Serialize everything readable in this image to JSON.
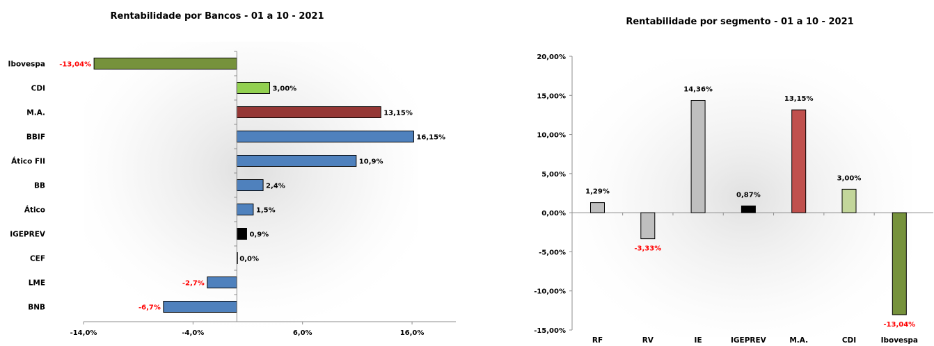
{
  "chart_data": [
    {
      "type": "bar",
      "orientation": "horizontal",
      "title": "Rentabilidade por Bancos - 01 a 10 - 2021",
      "categories": [
        "Ibovespa",
        "CDI",
        "M.A.",
        "BBIF",
        "Ático FII",
        "BB",
        "Ático",
        "IGEPREV",
        "CEF",
        "LME",
        "BNB"
      ],
      "values": [
        -13.04,
        3.0,
        13.15,
        16.15,
        10.9,
        2.4,
        1.5,
        0.9,
        0.0,
        -2.7,
        -6.7
      ],
      "data_labels": [
        "-13,04%",
        "3,00%",
        "13,15%",
        "16,15%",
        "10,9%",
        "2,4%",
        "1,5%",
        "0,9%",
        "0,0%",
        "-2,7%",
        "-6,7%"
      ],
      "colors": [
        "#76923c",
        "#92d050",
        "#953735",
        "#4f81bd",
        "#4f81bd",
        "#4f81bd",
        "#4f81bd",
        "#000000",
        "#4f81bd",
        "#4f81bd",
        "#4f81bd"
      ],
      "label_colors": [
        "#ff0000",
        "#000000",
        "#000000",
        "#000000",
        "#000000",
        "#000000",
        "#000000",
        "#000000",
        "#000000",
        "#ff0000",
        "#ff0000"
      ],
      "xlim": [
        -14,
        20
      ],
      "x_ticks": [
        -14,
        -4,
        6,
        16
      ],
      "x_tick_labels": [
        "-14,0%",
        "-4,0%",
        "6,0%",
        "16,0%"
      ],
      "xlabel": "",
      "ylabel": "",
      "grid": false,
      "legend": "none"
    },
    {
      "type": "bar",
      "orientation": "vertical",
      "title": "Rentabilidade por segmento - 01 a 10 - 2021",
      "categories": [
        "RF",
        "RV",
        "IE",
        "IGEPREV",
        "M.A.",
        "CDI",
        "Ibovespa"
      ],
      "values": [
        1.29,
        -3.33,
        14.36,
        0.87,
        13.15,
        3.0,
        -13.04
      ],
      "data_labels": [
        "1,29%",
        "-3,33%",
        "14,36%",
        "0,87%",
        "13,15%",
        "3,00%",
        "-13,04%"
      ],
      "colors": [
        "#bfbfbf",
        "#bfbfbf",
        "#bfbfbf",
        "#000000",
        "#c0504d",
        "#c3d69b",
        "#76923c"
      ],
      "label_colors": [
        "#000000",
        "#ff0000",
        "#000000",
        "#000000",
        "#000000",
        "#000000",
        "#ff0000"
      ],
      "ylim": [
        -15,
        20
      ],
      "y_ticks": [
        20,
        15,
        10,
        5,
        0,
        -5,
        -10,
        -15
      ],
      "y_tick_labels": [
        "20,00%",
        "15,00%",
        "10,00%",
        "5,00%",
        "0,00%",
        "-5,00%",
        "-10,00%",
        "-15,00%"
      ],
      "xlabel": "",
      "ylabel": "",
      "grid": false,
      "legend": "none"
    }
  ]
}
